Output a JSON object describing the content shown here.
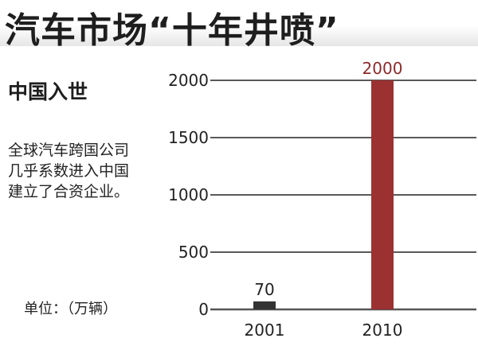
{
  "header": {
    "title": "汽车市场“十年井喷”"
  },
  "panel": {
    "subtitle": "中国入世",
    "description_lines": [
      "全球汽车跨国公司",
      "几乎系数进入中国",
      "建立了合资企业。"
    ],
    "unit": "单位：（万辆）"
  },
  "chart_data": {
    "type": "bar",
    "title": "汽车市场“十年井喷”",
    "categories": [
      "2001",
      "2010"
    ],
    "values": [
      70,
      2000
    ],
    "data_labels": [
      "70",
      "2000"
    ],
    "bar_colors": [
      "#333333",
      "#9b3131"
    ],
    "label_colors": [
      "#222222",
      "#8e2a2a"
    ],
    "ylabel": "单位：（万辆）",
    "ylim": [
      0,
      2000
    ],
    "yticks": [
      0,
      500,
      1000,
      1500,
      2000
    ],
    "ytick_labels": [
      "0",
      "500",
      "1000",
      "1500",
      "2000"
    ],
    "grid": true
  }
}
